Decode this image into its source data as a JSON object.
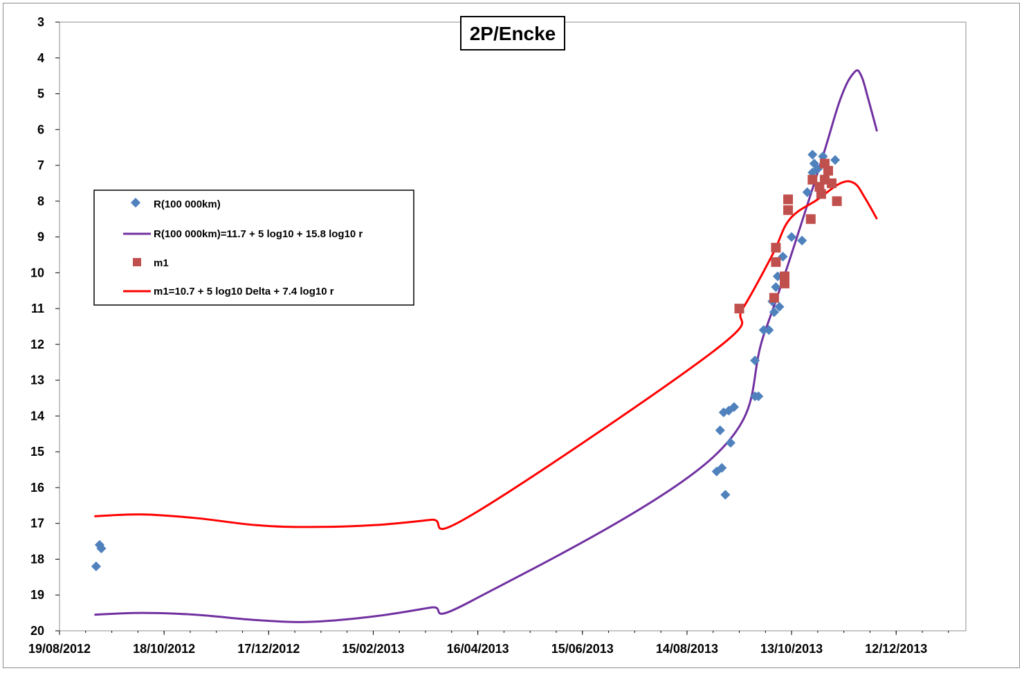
{
  "chart_data": {
    "type": "scatter",
    "title": "2P/Encke",
    "xlabel": "",
    "ylabel": "",
    "x_ticks": [
      "19/08/2012",
      "18/10/2012",
      "17/12/2012",
      "15/02/2013",
      "16/04/2013",
      "15/06/2013",
      "14/08/2013",
      "13/10/2013",
      "12/12/2013"
    ],
    "xlim": [
      "2012-08-19",
      "2014-01-21"
    ],
    "y_ticks": [
      3,
      4,
      5,
      6,
      7,
      8,
      9,
      10,
      11,
      12,
      13,
      14,
      15,
      16,
      17,
      18,
      19,
      20
    ],
    "ylim": [
      3,
      20
    ],
    "y_inverted": true,
    "grid": false,
    "legend_position": "left",
    "colors": {
      "R_points": "#4f81bd",
      "R_curve": "#7030a0",
      "m1_points": "#c0504d",
      "m1_curve": "#ff0000"
    },
    "series": [
      {
        "name": "R(100 000km)",
        "kind": "points",
        "marker": "diamond",
        "points": [
          [
            "2012-09-09",
            18.2
          ],
          [
            "2012-09-11",
            17.6
          ],
          [
            "2012-09-12",
            17.7
          ],
          [
            "2013-08-31",
            15.55
          ],
          [
            "2013-09-02",
            14.4
          ],
          [
            "2013-09-03",
            15.45
          ],
          [
            "2013-09-04",
            13.9
          ],
          [
            "2013-09-05",
            16.2
          ],
          [
            "2013-09-07",
            13.85
          ],
          [
            "2013-09-08",
            14.75
          ],
          [
            "2013-09-10",
            13.75
          ],
          [
            "2013-09-22",
            12.45
          ],
          [
            "2013-09-22",
            13.45
          ],
          [
            "2013-09-24",
            13.45
          ],
          [
            "2013-09-27",
            11.6
          ],
          [
            "2013-09-30",
            11.6
          ],
          [
            "2013-10-02",
            10.8
          ],
          [
            "2013-10-03",
            11.1
          ],
          [
            "2013-10-04",
            10.4
          ],
          [
            "2013-10-05",
            10.1
          ],
          [
            "2013-10-06",
            10.95
          ],
          [
            "2013-10-08",
            9.55
          ],
          [
            "2013-10-13",
            9.0
          ],
          [
            "2013-10-19",
            9.1
          ],
          [
            "2013-10-22",
            7.75
          ],
          [
            "2013-10-25",
            7.2
          ],
          [
            "2013-10-25",
            6.7
          ],
          [
            "2013-10-26",
            6.95
          ],
          [
            "2013-10-28",
            7.1
          ],
          [
            "2013-10-31",
            6.75
          ],
          [
            "2013-11-07",
            6.85
          ]
        ]
      },
      {
        "name": "R(100 000km)=11.7 + 5 log10 + 15.8  log10 r",
        "kind": "line",
        "points": [
          [
            "2012-09-08",
            19.55
          ],
          [
            "2012-10-05",
            19.5
          ],
          [
            "2012-11-05",
            19.55
          ],
          [
            "2012-12-10",
            19.7
          ],
          [
            "2013-01-10",
            19.75
          ],
          [
            "2013-02-15",
            19.6
          ],
          [
            "2013-03-20",
            19.35
          ],
          [
            "2013-04-13",
            19.15
          ],
          [
            "2013-08-29",
            15.15
          ],
          [
            "2013-09-28",
            11.6
          ],
          [
            "2013-10-28",
            7.2
          ],
          [
            "2013-11-10",
            5.15
          ],
          [
            "2013-11-18",
            4.4
          ],
          [
            "2013-11-22",
            4.5
          ],
          [
            "2013-11-26",
            5.15
          ],
          [
            "2013-12-01",
            6.05
          ]
        ]
      },
      {
        "name": "m1",
        "kind": "points",
        "marker": "square",
        "points": [
          [
            "2013-09-13",
            11.0
          ],
          [
            "2013-10-03",
            10.7
          ],
          [
            "2013-10-04",
            9.7
          ],
          [
            "2013-10-04",
            9.3
          ],
          [
            "2013-10-09",
            10.1
          ],
          [
            "2013-10-09",
            10.3
          ],
          [
            "2013-10-11",
            7.95
          ],
          [
            "2013-10-11",
            8.25
          ],
          [
            "2013-10-24",
            8.5
          ],
          [
            "2013-10-25",
            7.4
          ],
          [
            "2013-10-29",
            7.6
          ],
          [
            "2013-10-30",
            7.8
          ],
          [
            "2013-11-01",
            6.95
          ],
          [
            "2013-11-01",
            7.4
          ],
          [
            "2013-11-03",
            7.15
          ],
          [
            "2013-11-05",
            7.5
          ],
          [
            "2013-11-08",
            8.0
          ]
        ]
      },
      {
        "name": "m1=10.7 + 5 log10 Delta + 7.4 log10 r",
        "kind": "line",
        "points": [
          [
            "2012-09-08",
            16.8
          ],
          [
            "2012-10-05",
            16.75
          ],
          [
            "2012-11-05",
            16.85
          ],
          [
            "2012-12-10",
            17.05
          ],
          [
            "2013-01-10",
            17.1
          ],
          [
            "2013-02-15",
            17.05
          ],
          [
            "2013-03-20",
            16.9
          ],
          [
            "2013-04-13",
            16.75
          ],
          [
            "2013-08-29",
            12.2
          ],
          [
            "2013-09-15",
            11.0
          ],
          [
            "2013-10-02",
            9.5
          ],
          [
            "2013-10-12",
            8.5
          ],
          [
            "2013-10-28",
            7.95
          ],
          [
            "2013-11-10",
            7.5
          ],
          [
            "2013-11-18",
            7.5
          ],
          [
            "2013-11-24",
            7.9
          ],
          [
            "2013-12-01",
            8.5
          ]
        ]
      }
    ]
  }
}
